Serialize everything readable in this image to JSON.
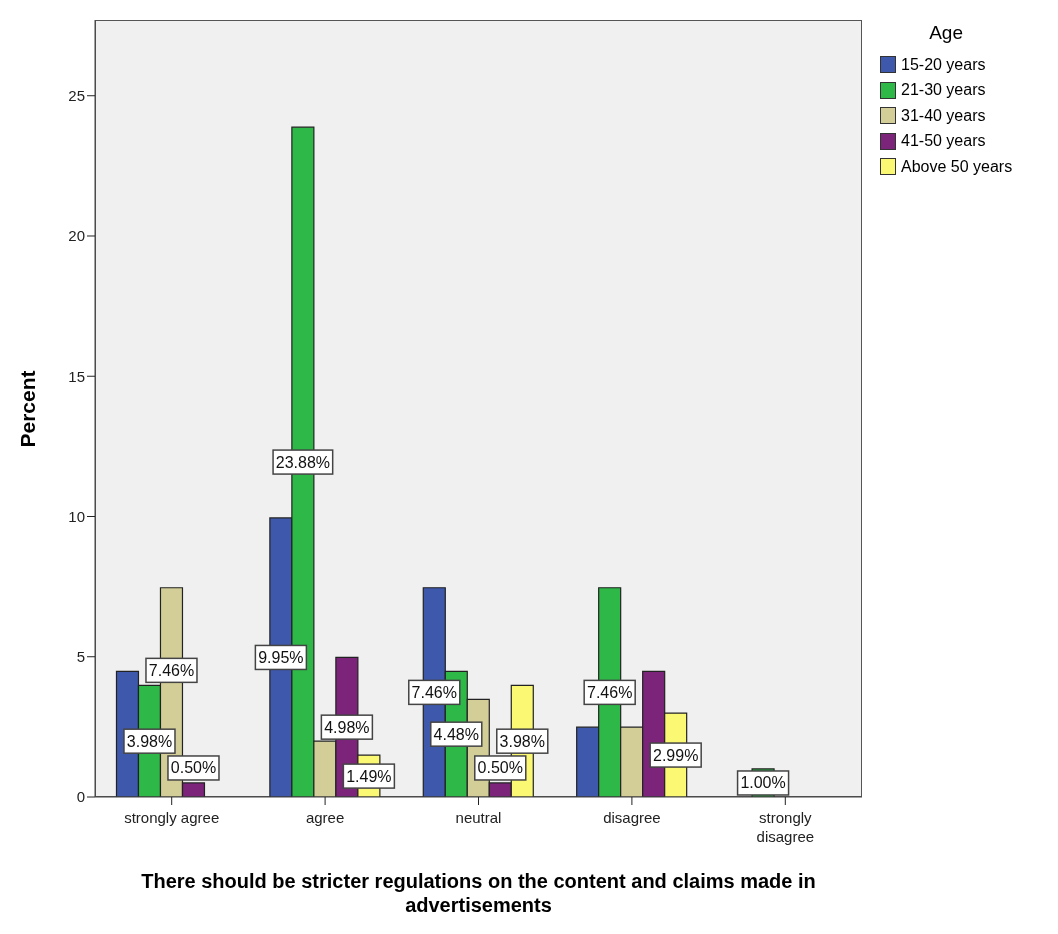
{
  "chart_data": {
    "type": "bar",
    "xlabel": "There should be stricter regulations on the content and claims made in advertisements",
    "ylabel": "Percent",
    "legend_title": "Age",
    "legend": "top right",
    "grid": false,
    "categories": [
      "strongly agree",
      "agree",
      "neutral",
      "disagree",
      "strongly disagree"
    ],
    "ylim": [
      0,
      27.7
    ],
    "yticks": [
      0,
      5,
      10,
      15,
      20,
      25
    ],
    "series": [
      {
        "name": "15-20 years",
        "color": "#3e58ac",
        "values": [
          4.48,
          9.95,
          7.46,
          2.49,
          null
        ],
        "value_labels": [
          null,
          "9.95%",
          "7.46%",
          null,
          null
        ]
      },
      {
        "name": "21-30 years",
        "color": "#2eb848",
        "values": [
          3.98,
          23.88,
          4.48,
          7.46,
          1.0
        ],
        "value_labels": [
          "3.98%",
          "23.88%",
          "4.48%",
          "7.46%",
          "1.00%"
        ]
      },
      {
        "name": "31-40 years",
        "color": "#d3ce97",
        "values": [
          7.46,
          1.99,
          3.48,
          2.49,
          null
        ],
        "value_labels": [
          "7.46%",
          null,
          null,
          null,
          null
        ]
      },
      {
        "name": "41-50 years",
        "color": "#7b2479",
        "values": [
          0.5,
          4.98,
          0.5,
          4.48,
          null
        ],
        "value_labels": [
          "0.50%",
          "4.98%",
          "0.50%",
          null,
          null
        ]
      },
      {
        "name": "Above 50 years",
        "color": "#fbf873",
        "values": [
          null,
          1.49,
          3.98,
          2.99,
          null
        ],
        "value_labels": [
          null,
          "1.49%",
          "3.98%",
          "2.99%",
          null
        ]
      }
    ]
  }
}
